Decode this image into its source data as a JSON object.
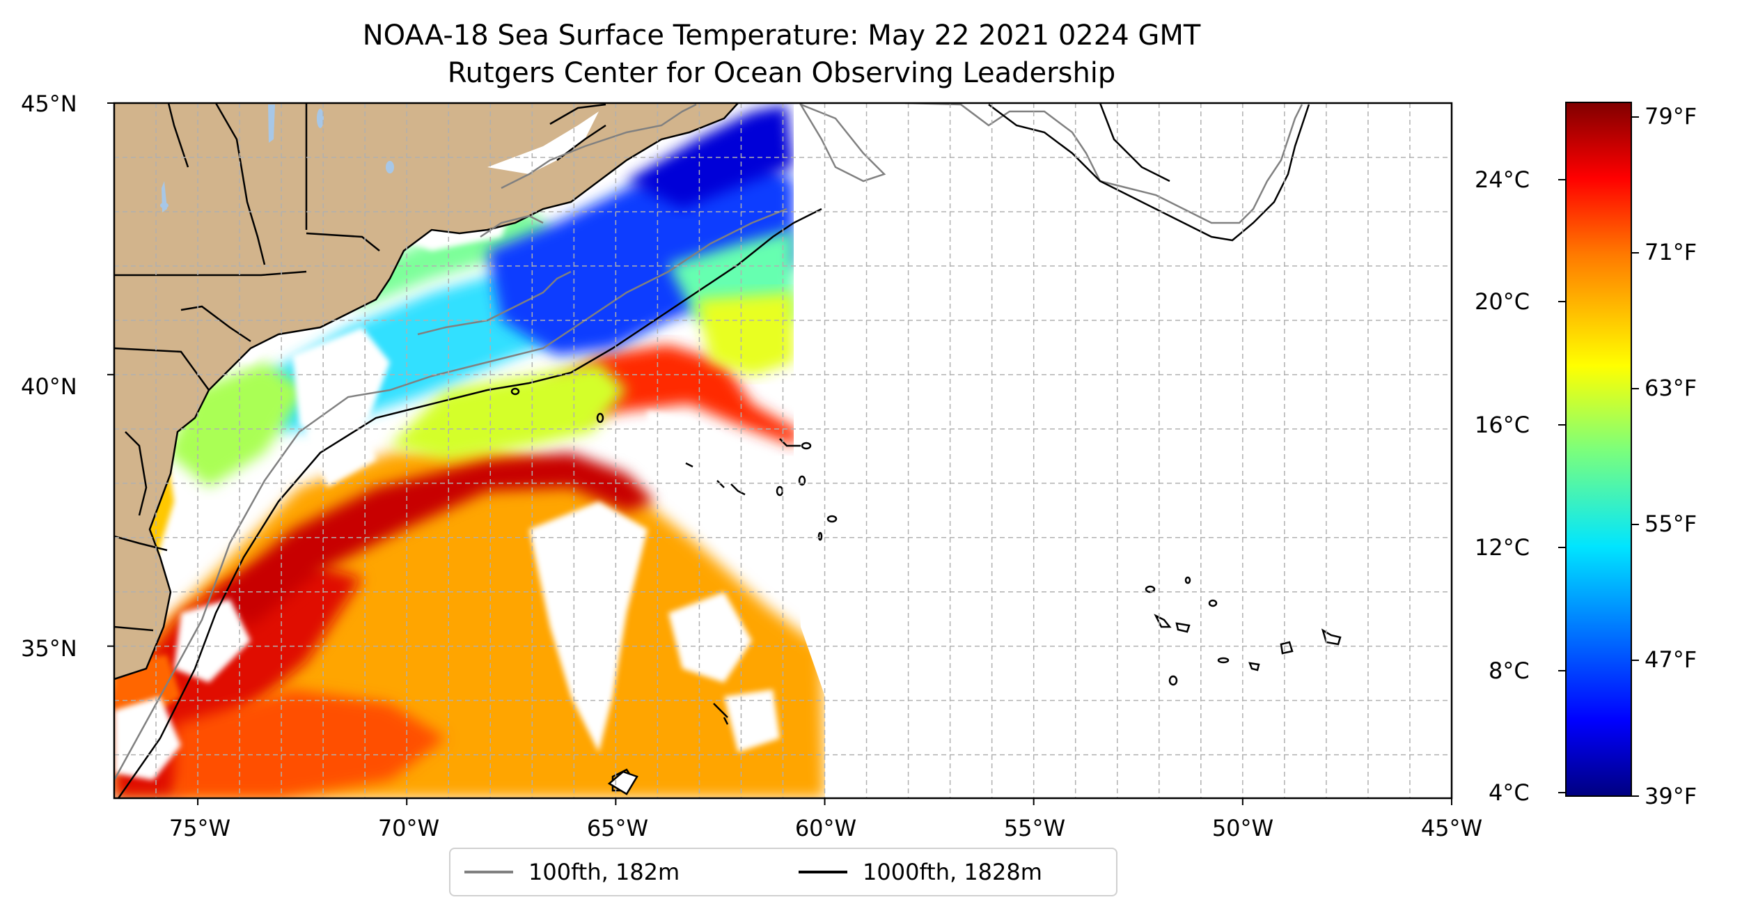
{
  "title": {
    "line1": "NOAA-18 Sea Surface Temperature: May 22 2021 0224 GMT",
    "line2": "Rutgers Center for Ocean Observing Leadership"
  },
  "map": {
    "lat_ticks": [
      "45°N",
      "40°N",
      "35°N"
    ],
    "lon_ticks": [
      "75°W",
      "70°W",
      "65°W",
      "60°W",
      "55°W",
      "50°W",
      "45°W"
    ],
    "extent": {
      "lon": [
        -77,
        -45
      ],
      "lat": [
        32.2,
        45
      ]
    },
    "colors": {
      "land": "#d2b48c",
      "lakes": "#a7c7e7",
      "no_data": "#ffffff",
      "grid": "#b0b0b0"
    }
  },
  "legend": {
    "items": [
      {
        "label": "100fth, 182m",
        "color": "#808080"
      },
      {
        "label": "1000fth, 1828m",
        "color": "#000000"
      }
    ]
  },
  "colorbar": {
    "colormap": "jet",
    "celsius_ticks": [
      "24°C",
      "20°C",
      "16°C",
      "12°C",
      "8°C",
      "4°C"
    ],
    "fahrenheit_ticks": [
      "79°F",
      "71°F",
      "63°F",
      "55°F",
      "47°F",
      "39°F"
    ],
    "range_f": [
      39,
      80
    ]
  }
}
